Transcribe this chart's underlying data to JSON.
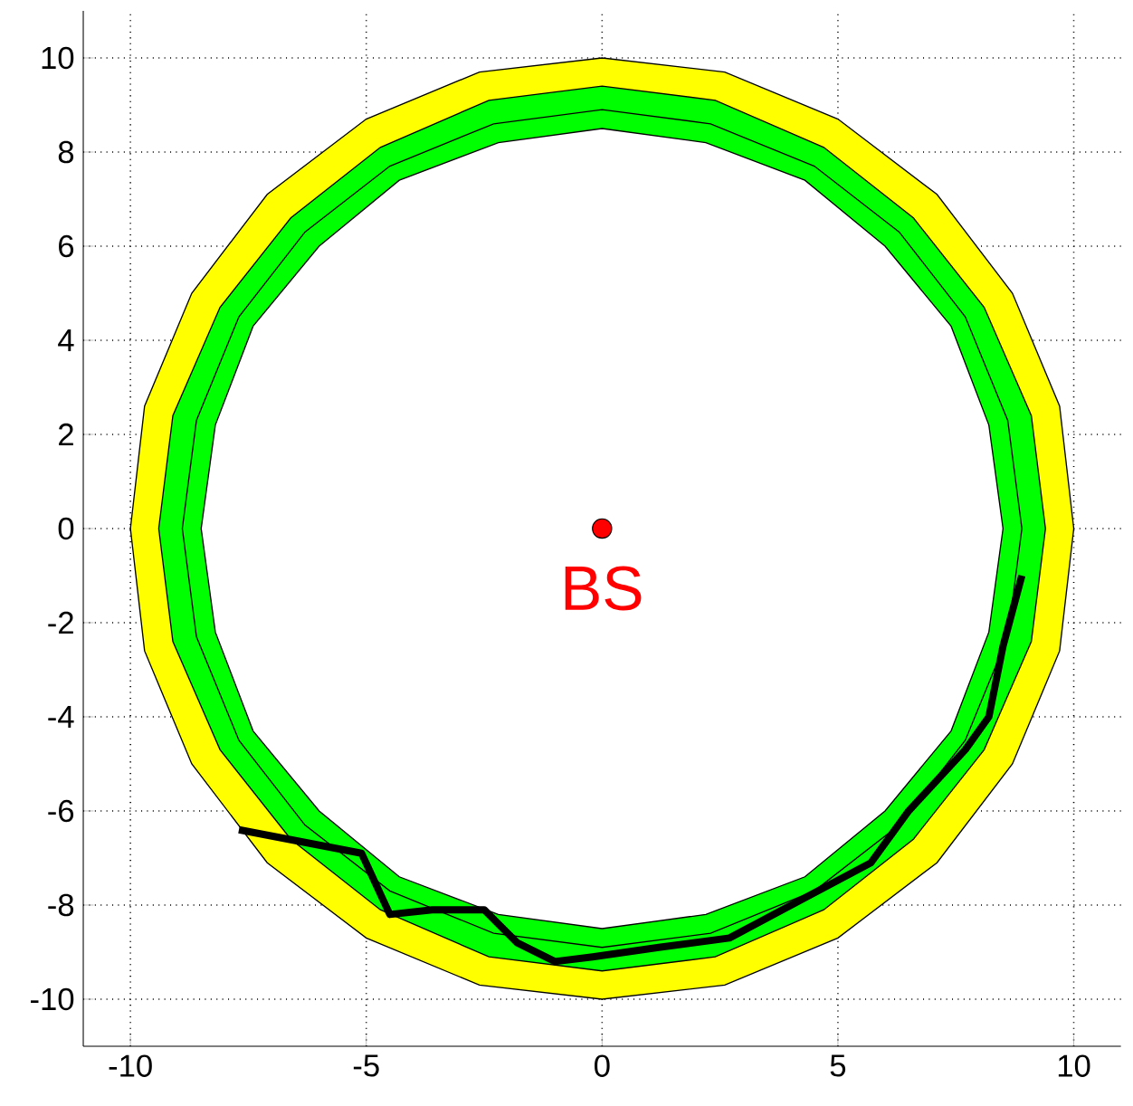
{
  "chart_data": {
    "type": "line",
    "xlim": [
      -11,
      11
    ],
    "ylim": [
      -11,
      11
    ],
    "xticks": [
      -10,
      -5,
      0,
      5,
      10
    ],
    "yticks": [
      -10,
      -8,
      -6,
      -4,
      -2,
      0,
      2,
      4,
      6,
      8,
      10
    ],
    "grid": true,
    "series": [
      {
        "type": "area",
        "color": "#ffff00",
        "x": [
          10,
          9.7,
          8.7,
          7.1,
          5,
          2.6,
          0,
          -2.6,
          -5,
          -7.1,
          -8.7,
          -9.7,
          -10,
          -9.7,
          -8.7,
          -7.1,
          -5,
          -2.6,
          0,
          2.6,
          5,
          7.1,
          8.7,
          9.7
        ],
        "values": [
          0,
          2.6,
          5,
          7.1,
          8.7,
          9.7,
          10,
          9.7,
          8.7,
          7.1,
          5,
          2.6,
          0,
          -2.6,
          -5,
          -7.1,
          -8.7,
          -9.7,
          -10,
          -9.7,
          -8.7,
          -7.1,
          -5,
          -2.6
        ]
      },
      {
        "type": "area",
        "color": "#00ff00",
        "x": [
          9.4,
          9.1,
          8.1,
          6.6,
          4.7,
          2.4,
          0,
          -2.4,
          -4.7,
          -6.6,
          -8.1,
          -9.1,
          -9.4,
          -9.1,
          -8.1,
          -6.6,
          -4.7,
          -2.4,
          0,
          2.4,
          4.7,
          6.6,
          8.1,
          9.1
        ],
        "values": [
          0,
          2.4,
          4.7,
          6.6,
          8.1,
          9.1,
          9.4,
          9.1,
          8.1,
          6.6,
          4.7,
          2.4,
          0,
          -2.4,
          -4.7,
          -6.6,
          -8.1,
          -9.1,
          -9.4,
          -9.1,
          -8.1,
          -6.6,
          -4.7,
          -2.4
        ]
      },
      {
        "type": "area",
        "color": "#00ff00",
        "x": [
          8.9,
          8.6,
          7.7,
          6.3,
          4.5,
          2.3,
          0,
          -2.3,
          -4.5,
          -6.3,
          -7.7,
          -8.6,
          -8.9,
          -8.6,
          -7.7,
          -6.3,
          -4.5,
          -2.3,
          0,
          2.3,
          4.5,
          6.3,
          7.7,
          8.6
        ],
        "values": [
          0,
          2.3,
          4.5,
          6.3,
          7.7,
          8.6,
          8.9,
          8.6,
          7.7,
          6.3,
          4.5,
          2.3,
          0,
          -2.3,
          -4.5,
          -6.3,
          -7.7,
          -8.6,
          -8.9,
          -8.6,
          -7.7,
          -6.3,
          -4.5,
          -2.3
        ]
      },
      {
        "type": "area",
        "color": "#ffffff",
        "x": [
          8.5,
          8.2,
          7.4,
          6,
          4.3,
          2.2,
          0,
          -2.2,
          -4.3,
          -6,
          -7.4,
          -8.2,
          -8.5,
          -8.2,
          -7.4,
          -6,
          -4.3,
          -2.2,
          0,
          2.2,
          4.3,
          6,
          7.4,
          8.2
        ],
        "values": [
          0,
          2.2,
          4.3,
          6,
          7.4,
          8.2,
          8.5,
          8.2,
          7.4,
          6,
          4.3,
          2.2,
          0,
          -2.2,
          -4.3,
          -6,
          -7.4,
          -8.2,
          -8.5,
          -8.2,
          -7.4,
          -6,
          -4.3,
          -2.2
        ]
      },
      {
        "color": "#000000",
        "x": [
          -7.7,
          -5.1,
          -4.5,
          -3.6,
          -2.5,
          -1.8,
          -1.0,
          -0.2,
          1.2,
          2.7,
          4.2,
          5.7,
          6.5,
          7.7,
          8.2,
          8.5,
          8.9
        ],
        "values": [
          -6.4,
          -6.9,
          -8.2,
          -8.1,
          -8.1,
          -8.8,
          -9.2,
          -9.1,
          -8.9,
          -8.7,
          -7.9,
          -7.1,
          -6.0,
          -4.7,
          -4.0,
          -2.5,
          -1.0
        ]
      },
      {
        "type": "scatter",
        "color": "#ff0000",
        "x": [
          0
        ],
        "values": [
          0
        ]
      }
    ],
    "annotations": [
      {
        "text": "BS",
        "x": 0,
        "y": 0
      }
    ]
  }
}
